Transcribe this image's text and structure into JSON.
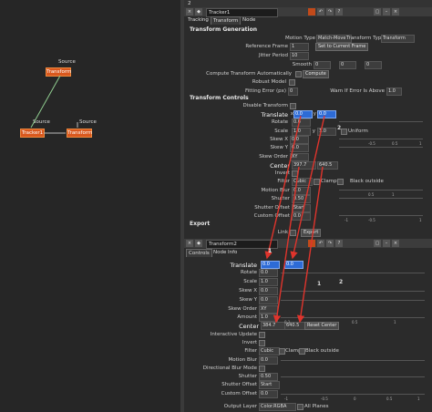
{
  "graph": {
    "nodes": [
      "Transform",
      "Tracker1",
      "Transform"
    ],
    "source_label": "Source"
  },
  "tracker": {
    "tab_num": "2",
    "name": "Tracker1",
    "tabs": [
      "Tracking",
      "Transform",
      "Node"
    ],
    "section_generation": "Transform Generation",
    "motion_type_label": "Motion Type",
    "motion_type_value": "Match-Move",
    "transform_type_label": "Transform Type",
    "transform_type_value": "Transform",
    "reference_frame_label": "Reference Frame",
    "reference_frame_value": "1",
    "set_to_current_frame": "Set to Current Frame",
    "jitter_period_label": "Jitter Period",
    "jitter_period_value": "10",
    "smooth_label": "Smooth",
    "smooth_values": [
      "0",
      "0",
      "0"
    ],
    "compute_auto_label": "Compute Transform Automatically",
    "compute_button": "Compute",
    "robust_model_label": "Robust Model",
    "fitting_error_label": "Fitting Error (px)",
    "fitting_error_value": "0",
    "warn_label": "Warn If Error Is Above",
    "warn_value": "1.0",
    "section_controls": "Transform Controls",
    "disable_transform_label": "Disable Transform",
    "translate_label": "Translate",
    "translate_x_label": "x",
    "translate_x": "0.0",
    "translate_y_label": "y",
    "translate_y": "0.0",
    "rotate_label": "Rotate",
    "rotate_value": "0.0",
    "scale_label": "Scale",
    "scale_value": "1.0",
    "scale_y_label": "y",
    "scale_y_value": "1.0",
    "uniform_label": "Uniform",
    "skewx_label": "Skew X",
    "skewx_value": "0.0",
    "skewy_label": "Skew Y",
    "skewy_value": "0.0",
    "skew_order_label": "Skew Order",
    "skew_order_value": "XY",
    "center_label": "Center",
    "center_x": "397.7",
    "center_y": "640.5",
    "invert_label": "Invert",
    "filter_label": "Filter",
    "filter_value": "Cubic",
    "clamp_label": "Clamp",
    "black_outside_label": "Black outside",
    "motion_blur_label": "Motion Blur",
    "motion_blur_value": "0.0",
    "shutter_label": "Shutter",
    "shutter_value": "0.50",
    "shutter_offset_label": "Shutter Offset",
    "shutter_offset_value": "Start",
    "custom_offset_label": "Custom Offset",
    "custom_offset_value": "0.0",
    "section_export": "Export",
    "link_label": "Link",
    "export_button": "Export"
  },
  "transform": {
    "name": "Transform2",
    "tabs": [
      "Controls",
      "Node",
      "Info"
    ],
    "translate_label": "Translate",
    "translate_x": "0.0",
    "translate_y": "0.0",
    "rotate_label": "Rotate",
    "rotate_value": "0.0",
    "scale_label": "Scale",
    "scale_value": "1.0",
    "skewx_label": "Skew X",
    "skewx_value": "0.0",
    "skewy_label": "Skew Y",
    "skewy_value": "0.0",
    "skew_order_label": "Skew Order",
    "skew_order_value": "XY",
    "amount_label": "Amount",
    "amount_value": "1.0",
    "center_label": "Center",
    "center_x": "384.7",
    "center_y": "640.5",
    "reset_center": "Reset Center",
    "interactive_update_label": "Interactive Update",
    "invert_label": "Invert",
    "filter_label": "Filter",
    "filter_value": "Cubic",
    "clamp_label": "Clamp",
    "black_outside_label": "Black outside",
    "motion_blur_label": "Motion Blur",
    "motion_blur_value": "0.0",
    "directional_blur_label": "Directional Blur Mode",
    "shutter_label": "Shutter",
    "shutter_value": "0.50",
    "shutter_offset_label": "Shutter Offset",
    "shutter_offset_value": "Start",
    "custom_offset_label": "Custom Offset",
    "custom_offset_value": "0.0",
    "output_layer_label": "Output Layer",
    "output_layer_value": "Color.RGBA",
    "all_planes_label": "All Planes"
  },
  "annotations": [
    "1",
    "2",
    "1",
    "2"
  ],
  "slider_ticks": [
    "0.1",
    "0.5",
    "1",
    "-1",
    "-0.5",
    "0",
    "0.5",
    "1"
  ],
  "colors": {
    "arrow": "#e0342c",
    "node": "#d9581e",
    "field_active": "#2d6bd6"
  }
}
